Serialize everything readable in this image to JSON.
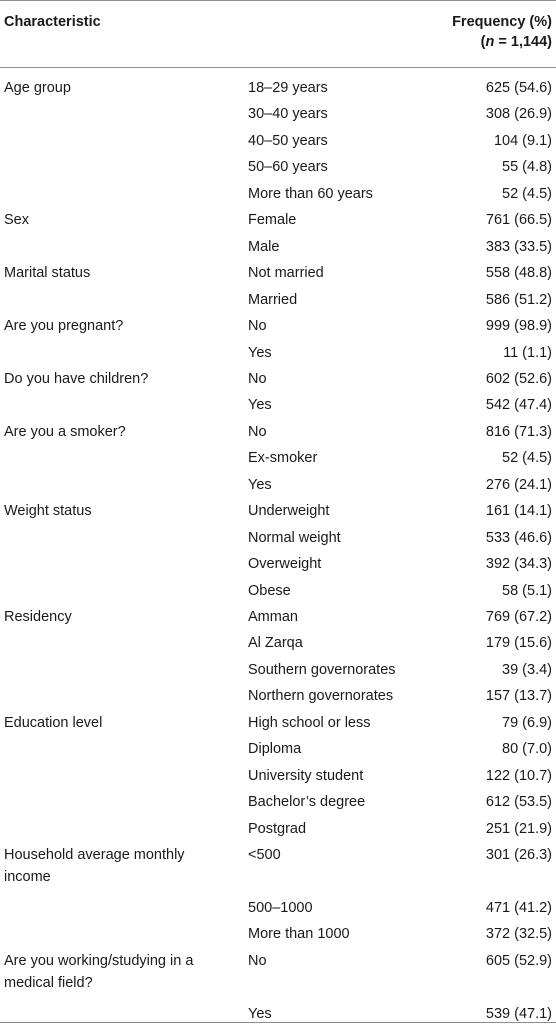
{
  "header": {
    "characteristic": "Characteristic",
    "frequency": "Frequency (%)",
    "n_italic": "n",
    "n_rest": " = 1,144)",
    "n_open": "("
  },
  "rows": [
    {
      "characteristic": "Age group",
      "category": "18–29 years",
      "frequency": "625 (54.6)"
    },
    {
      "characteristic": "",
      "category": "30–40 years",
      "frequency": "308 (26.9)"
    },
    {
      "characteristic": "",
      "category": "40–50 years",
      "frequency": "104 (9.1)"
    },
    {
      "characteristic": "",
      "category": "50–60 years",
      "frequency": "55 (4.8)"
    },
    {
      "characteristic": "",
      "category": "More than 60 years",
      "frequency": "52 (4.5)"
    },
    {
      "characteristic": "Sex",
      "category": "Female",
      "frequency": "761 (66.5)"
    },
    {
      "characteristic": "",
      "category": "Male",
      "frequency": "383 (33.5)"
    },
    {
      "characteristic": "Marital status",
      "category": "Not married",
      "frequency": "558 (48.8)"
    },
    {
      "characteristic": "",
      "category": "Married",
      "frequency": "586 (51.2)"
    },
    {
      "characteristic": "Are you pregnant?",
      "category": "No",
      "frequency": "999 (98.9)"
    },
    {
      "characteristic": "",
      "category": "Yes",
      "frequency": "11 (1.1)"
    },
    {
      "characteristic": "Do you have children?",
      "category": "No",
      "frequency": "602 (52.6)"
    },
    {
      "characteristic": "",
      "category": "Yes",
      "frequency": "542 (47.4)"
    },
    {
      "characteristic": "Are you a smoker?",
      "category": "No",
      "frequency": "816 (71.3)"
    },
    {
      "characteristic": "",
      "category": "Ex-smoker",
      "frequency": "52 (4.5)"
    },
    {
      "characteristic": "",
      "category": "Yes",
      "frequency": "276 (24.1)"
    },
    {
      "characteristic": "Weight status",
      "category": "Underweight",
      "frequency": "161 (14.1)"
    },
    {
      "characteristic": "",
      "category": "Normal weight",
      "frequency": "533 (46.6)"
    },
    {
      "characteristic": "",
      "category": "Overweight",
      "frequency": "392 (34.3)"
    },
    {
      "characteristic": "",
      "category": "Obese",
      "frequency": "58 (5.1)"
    },
    {
      "characteristic": "Residency",
      "category": "Amman",
      "frequency": "769 (67.2)"
    },
    {
      "characteristic": "",
      "category": "Al Zarqa",
      "frequency": "179 (15.6)"
    },
    {
      "characteristic": "",
      "category": "Southern governorates",
      "frequency": "39 (3.4)"
    },
    {
      "characteristic": "",
      "category": "Northern governorates",
      "frequency": "157 (13.7)"
    },
    {
      "characteristic": "Education level",
      "category": "High school or less",
      "frequency": "79 (6.9)"
    },
    {
      "characteristic": "",
      "category": "Diploma",
      "frequency": "80 (7.0)"
    },
    {
      "characteristic": "",
      "category": "University student",
      "frequency": "122 (10.7)"
    },
    {
      "characteristic": "",
      "category": "Bachelor’s degree",
      "frequency": "612 (53.5)"
    },
    {
      "characteristic": "",
      "category": "Postgrad",
      "frequency": "251 (21.9)"
    },
    {
      "characteristic": "Household average monthly income",
      "category": "<500",
      "frequency": "301 (26.3)"
    },
    {
      "characteristic": "",
      "category": "500–1000",
      "frequency": "471 (41.2)"
    },
    {
      "characteristic": "",
      "category": "More than 1000",
      "frequency": "372 (32.5)"
    },
    {
      "characteristic": "Are you working/studying in a medical field?",
      "category": "No",
      "frequency": "605 (52.9)"
    },
    {
      "characteristic": "",
      "category": "Yes",
      "frequency": "539 (47.1)"
    }
  ]
}
